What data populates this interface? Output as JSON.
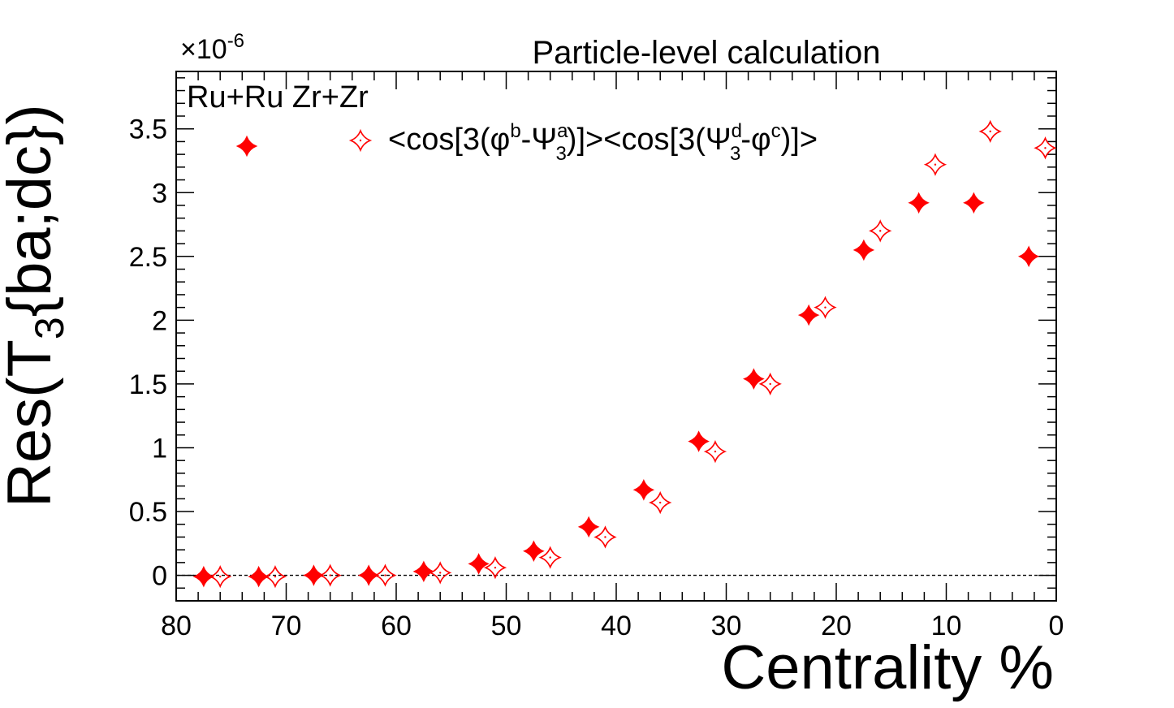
{
  "chart_data": {
    "type": "scatter",
    "title": "Particle-level calculation",
    "xlabel": "Centrality %",
    "ylabel": {
      "prefix": "Res(T",
      "sub": "3",
      "suffix": "{ba;dc})"
    },
    "y_exponent": {
      "prefix": "×10",
      "sup": "-6"
    },
    "x_reversed": true,
    "xlim": [
      0,
      80
    ],
    "ylim": [
      -0.2,
      3.95
    ],
    "x_ticks": [
      "80",
      "70",
      "60",
      "50",
      "40",
      "30",
      "20",
      "10",
      "0"
    ],
    "y_ticks": [
      "0",
      "0.5",
      "1",
      "1.5",
      "2",
      "2.5",
      "3",
      "3.5"
    ],
    "reference_line_y": 0,
    "legend": {
      "header": "Ru+Ru Zr+Zr",
      "placement": "top-left",
      "entry_filled": "",
      "entry_open": {
        "t1": "<cos[3(φ",
        "sup1": "b",
        "t2": "-Ψ",
        "sup2": "a",
        "sub2": "3",
        "t3": ")]><cos[3(Ψ",
        "sup3": "d",
        "sub3": "3",
        "t4": "-φ",
        "sup4": "c",
        "t5": ")]>"
      }
    },
    "series": [
      {
        "name": "filled",
        "marker": "filled-star",
        "color": "#ff0000",
        "x": [
          2.5,
          7.5,
          12.5,
          17.5,
          22.5,
          27.5,
          32.5,
          37.5,
          42.5,
          47.5,
          52.5,
          57.5,
          62.5,
          67.5,
          72.5,
          77.5
        ],
        "y": [
          2.5,
          2.92,
          2.92,
          2.55,
          2.04,
          1.54,
          1.05,
          0.67,
          0.38,
          0.19,
          0.09,
          0.03,
          0.0,
          0.0,
          -0.01,
          -0.01
        ]
      },
      {
        "name": "<cos[3(φb-Ψ3a)]><cos[3(Ψ3d-φc)]>",
        "marker": "open-star",
        "color": "#ff0000",
        "x": [
          1.0,
          6.0,
          11.0,
          16.0,
          21.0,
          26.0,
          31.0,
          36.0,
          41.0,
          46.0,
          51.0,
          56.0,
          61.0,
          66.0,
          71.0,
          76.0
        ],
        "y": [
          3.35,
          3.48,
          3.22,
          2.7,
          2.1,
          1.5,
          0.97,
          0.57,
          0.3,
          0.14,
          0.06,
          0.02,
          0.0,
          0.0,
          -0.01,
          -0.01
        ]
      }
    ]
  }
}
